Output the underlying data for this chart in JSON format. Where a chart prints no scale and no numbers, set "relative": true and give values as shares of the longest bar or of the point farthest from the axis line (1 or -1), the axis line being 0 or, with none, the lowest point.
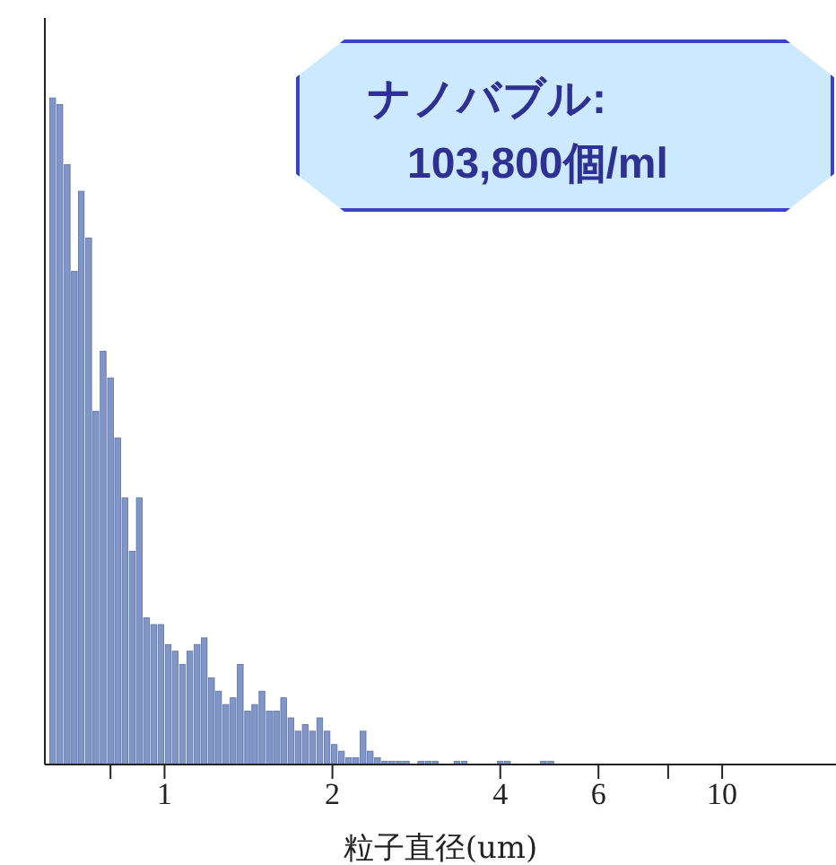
{
  "chart_data": {
    "type": "bar",
    "relative": true,
    "log": "x",
    "xlabel": "粒子直径(um)",
    "color": "#8096c8",
    "annotations": [
      "ナノバブル:",
      "103,800個/ml"
    ],
    "xlim": [
      0.61,
      16
    ],
    "xticks": [
      {
        "value": 0.8,
        "label": null
      },
      1,
      2,
      4,
      6,
      {
        "value": 8,
        "label": null
      },
      10
    ],
    "x": [
      0.63,
      0.649,
      0.669,
      0.689,
      0.709,
      0.731,
      0.753,
      0.776,
      0.8,
      0.824,
      0.849,
      0.875,
      0.901,
      0.928,
      0.956,
      0.985,
      1.015,
      1.045,
      1.077,
      1.11,
      1.144,
      1.178,
      1.214,
      1.25,
      1.288,
      1.327,
      1.367,
      1.409,
      1.451,
      1.495,
      1.541,
      1.587,
      1.635,
      1.685,
      1.736,
      1.788,
      1.842,
      1.898,
      1.956,
      2.015,
      2.076,
      2.139,
      2.203,
      2.27,
      2.338,
      2.409,
      2.482,
      2.557,
      2.635,
      2.714,
      2.796,
      2.881,
      2.968,
      3.058,
      3.151,
      3.246,
      3.344,
      3.445,
      3.55,
      3.657,
      3.768,
      3.882,
      3.999,
      4.12,
      4.245,
      4.373,
      4.505,
      4.642,
      4.782,
      4.927,
      5.076
    ],
    "values": [
      1.0,
      0.99,
      0.9,
      0.74,
      0.86,
      0.79,
      0.53,
      0.62,
      0.58,
      0.49,
      0.4,
      0.32,
      0.4,
      0.22,
      0.21,
      0.21,
      0.18,
      0.17,
      0.15,
      0.17,
      0.18,
      0.19,
      0.13,
      0.11,
      0.09,
      0.1,
      0.15,
      0.08,
      0.09,
      0.11,
      0.08,
      0.08,
      0.1,
      0.07,
      0.05,
      0.06,
      0.05,
      0.07,
      0.05,
      0.03,
      0.02,
      0.01,
      0.01,
      0.05,
      0.02,
      0.01,
      0.005,
      0.005,
      0.005,
      0.005,
      0,
      0.005,
      0.005,
      0.005,
      0,
      0,
      0.005,
      0.005,
      0,
      0,
      0,
      0,
      0.005,
      0.005,
      0,
      0,
      0,
      0,
      0.005,
      0.005,
      0
    ]
  }
}
